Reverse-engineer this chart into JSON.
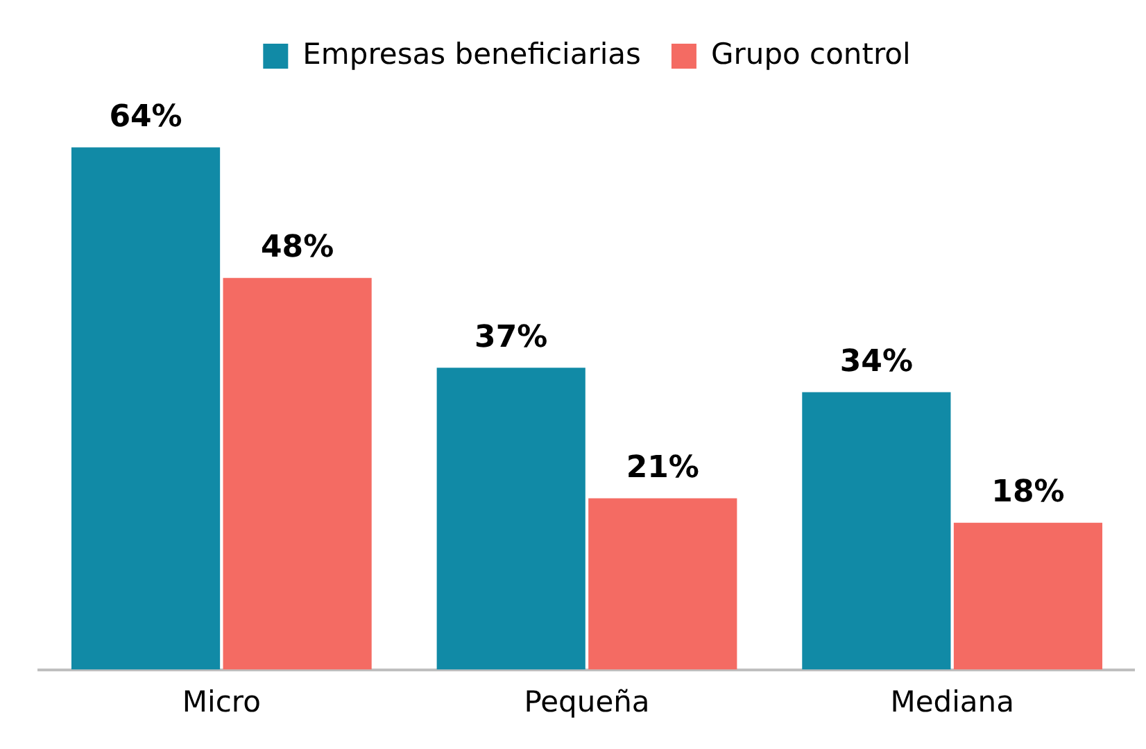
{
  "chart_data": {
    "type": "bar",
    "categories": [
      "Micro",
      "Pequeña",
      "Mediana"
    ],
    "series": [
      {
        "name": "Empresas beneficiarias",
        "color": "#118aa6",
        "values": [
          64,
          37,
          34
        ],
        "value_labels": [
          "64%",
          "37%",
          "34%"
        ]
      },
      {
        "name": "Grupo control",
        "color": "#f46b63",
        "values": [
          48,
          21,
          18
        ],
        "value_labels": [
          "48%",
          "21%",
          "18%"
        ]
      }
    ],
    "legend": "top",
    "grid": false
  }
}
